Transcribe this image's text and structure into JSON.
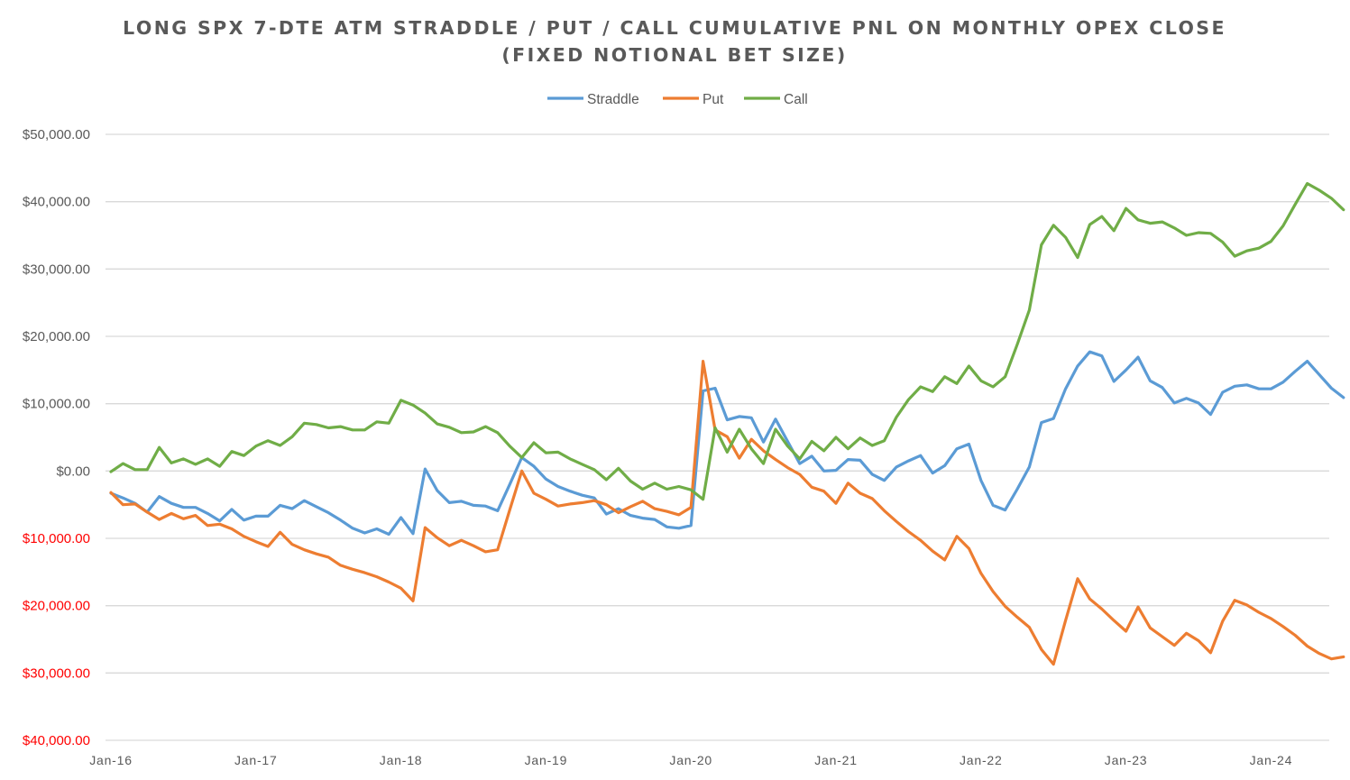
{
  "chart_data": {
    "type": "line",
    "title": "LONG SPX 7-DTE ATM STRADDLE / PUT / CALL CUMULATIVE PNL ON MONTHLY OPEX CLOSE",
    "subtitle": "(FIXED NOTIONAL BET SIZE)",
    "xlabel": "",
    "ylabel": "",
    "ylim": [
      -40000,
      50000
    ],
    "y_ticks": [
      {
        "value": 50000,
        "label": "$50,000.00",
        "color": "#595959"
      },
      {
        "value": 40000,
        "label": "$40,000.00",
        "color": "#595959"
      },
      {
        "value": 30000,
        "label": "$30,000.00",
        "color": "#595959"
      },
      {
        "value": 20000,
        "label": "$20,000.00",
        "color": "#595959"
      },
      {
        "value": 10000,
        "label": "$10,000.00",
        "color": "#595959"
      },
      {
        "value": 0,
        "label": "$0.00",
        "color": "#595959"
      },
      {
        "value": -10000,
        "label": "$10,000.00",
        "color": "#ff0000"
      },
      {
        "value": -20000,
        "label": "$20,000.00",
        "color": "#ff0000"
      },
      {
        "value": -30000,
        "label": "$30,000.00",
        "color": "#ff0000"
      },
      {
        "value": -40000,
        "label": "$40,000.00",
        "color": "#ff0000"
      }
    ],
    "x_ticks": [
      "Jan-16",
      "Jan-17",
      "Jan-18",
      "Jan-19",
      "Jan-20",
      "Jan-21",
      "Jan-22",
      "Jan-23",
      "Jan-24"
    ],
    "x_range": [
      "Jan-16",
      "Jun-24"
    ],
    "grid": true,
    "legend_position": "top-center",
    "series": [
      {
        "name": "Straddle",
        "color": "#5b9bd5",
        "values": [
          -3300,
          -4000,
          -4800,
          -6100,
          -3800,
          -4800,
          -5400,
          -5400,
          -6300,
          -7400,
          -5700,
          -7300,
          -6700,
          -6700,
          -5100,
          -5600,
          -4400,
          -5300,
          -6200,
          -7300,
          -8500,
          -9200,
          -8600,
          -9400,
          -6900,
          -9300,
          300,
          -2900,
          -4700,
          -4500,
          -5100,
          -5200,
          -5900,
          -2000,
          2000,
          700,
          -1200,
          -2300,
          -3000,
          -3600,
          -4000,
          -6400,
          -5600,
          -6600,
          -7000,
          -7200,
          -8300,
          -8500,
          -8100,
          11900,
          12300,
          7600,
          8100,
          7900,
          4300,
          7700,
          4400,
          1100,
          2200,
          0,
          100,
          1700,
          1600,
          -500,
          -1400,
          600,
          1500,
          2300,
          -300,
          800,
          3300,
          4000,
          -1400,
          -5100,
          -5800,
          -2700,
          600,
          7200,
          7800,
          12200,
          15600,
          17700,
          17100,
          13300,
          15000,
          16900,
          13400,
          12400,
          10100,
          10800,
          10100,
          8400,
          11700,
          12600,
          12800,
          12200,
          12200,
          13200,
          14800,
          16300,
          14300,
          12300,
          10900
        ]
      },
      {
        "name": "Put",
        "color": "#ed7d31",
        "values": [
          -3200,
          -5000,
          -4900,
          -6100,
          -7200,
          -6300,
          -7100,
          -6600,
          -8100,
          -7900,
          -8600,
          -9700,
          -10500,
          -11200,
          -9100,
          -10900,
          -11700,
          -12300,
          -12800,
          -14000,
          -14600,
          -15100,
          -15700,
          -16500,
          -17400,
          -19300,
          -8400,
          -9900,
          -11100,
          -10300,
          -11100,
          -12000,
          -11700,
          -5800,
          0,
          -3300,
          -4200,
          -5200,
          -4900,
          -4700,
          -4400,
          -5000,
          -6200,
          -5300,
          -4500,
          -5600,
          -6000,
          -6500,
          -5400,
          16300,
          6100,
          5100,
          1900,
          4700,
          3000,
          1700,
          500,
          -500,
          -2400,
          -3000,
          -4800,
          -1800,
          -3300,
          -4100,
          -5900,
          -7500,
          -9000,
          -10300,
          -11900,
          -13200,
          -9700,
          -11500,
          -15200,
          -17900,
          -20100,
          -21700,
          -23200,
          -26500,
          -28700,
          -22200,
          -16000,
          -19000,
          -20500,
          -22200,
          -23800,
          -20200,
          -23300,
          -24600,
          -25900,
          -24100,
          -25200,
          -27000,
          -22300,
          -19200,
          -19900,
          -21000,
          -21900,
          -23100,
          -24400,
          -26000,
          -27100,
          -27900,
          -27600
        ]
      },
      {
        "name": "Call",
        "color": "#70ad47",
        "values": [
          -100,
          1100,
          200,
          200,
          3500,
          1200,
          1800,
          1000,
          1800,
          700,
          2900,
          2300,
          3700,
          4500,
          3800,
          5100,
          7100,
          6900,
          6400,
          6600,
          6100,
          6100,
          7300,
          7100,
          10500,
          9800,
          8600,
          7000,
          6500,
          5700,
          5800,
          6600,
          5700,
          3700,
          2000,
          4200,
          2700,
          2800,
          1800,
          1000,
          200,
          -1300,
          400,
          -1500,
          -2700,
          -1800,
          -2700,
          -2300,
          -2800,
          -4200,
          6400,
          2800,
          6200,
          3300,
          1100,
          6200,
          3700,
          1800,
          4400,
          3000,
          5000,
          3300,
          4900,
          3800,
          4500,
          8000,
          10600,
          12500,
          11800,
          14000,
          13000,
          15600,
          13400,
          12500,
          14000,
          18800,
          23900,
          33600,
          36500,
          34700,
          31700,
          36600,
          37800,
          35700,
          39000,
          37300,
          36800,
          37000,
          36100,
          35000,
          35400,
          35300,
          34000,
          31900,
          32700,
          33100,
          34100,
          36400,
          39600,
          42700,
          41700,
          40500,
          38800
        ]
      }
    ]
  },
  "legend": {
    "items": [
      "Straddle",
      "Put",
      "Call"
    ]
  }
}
